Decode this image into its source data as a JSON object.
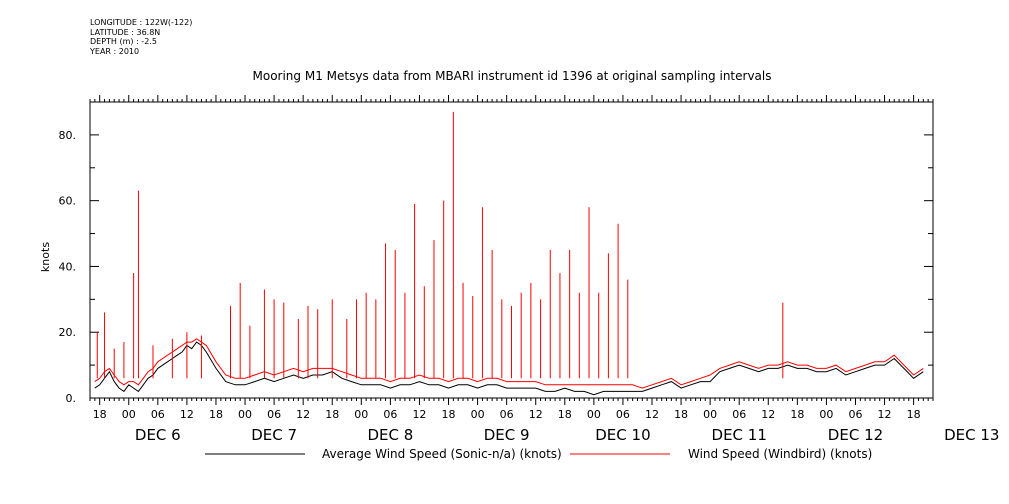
{
  "meta": {
    "longitude": "LONGITUDE : 122W(-122)",
    "latitude": "LATITUDE : 36.8N",
    "depth": "DEPTH (m) : -2.5",
    "year": "YEAR : 2010"
  },
  "chart_data": {
    "type": "line",
    "title": "Mooring M1 Metsys data from MBARI instrument id 1396 at original sampling intervals",
    "xlabel": "",
    "ylabel": "knots",
    "ylim": [
      0,
      90
    ],
    "yticks": [
      "0.",
      "20.",
      "40.",
      "60.",
      "80."
    ],
    "ytick_values": [
      0,
      20,
      40,
      60,
      80
    ],
    "xlim_hours": [
      -8,
      166
    ],
    "x_axis_start": "DEC 5 16:00",
    "hour_tick_labels": [
      "18",
      "00",
      "06",
      "12",
      "18",
      "00",
      "06",
      "12",
      "18",
      "00",
      "06",
      "12",
      "18",
      "00",
      "06",
      "12",
      "18",
      "00",
      "06",
      "12",
      "18",
      "00",
      "06",
      "12",
      "18",
      "00",
      "06",
      "12",
      "18"
    ],
    "day_labels": [
      "DEC  6",
      "DEC  7",
      "DEC  8",
      "DEC  9",
      "DEC 10",
      "DEC 11",
      "DEC 12",
      "DEC 13"
    ],
    "grid": false,
    "legend_position": "bottom",
    "series": [
      {
        "name": "Average Wind Speed (Sonic-n/a) (knots)",
        "color": "#000000",
        "x": [
          -7,
          -6,
          -5,
          -4,
          -3,
          -2,
          -1,
          0,
          1,
          2,
          3,
          4,
          5,
          6,
          7,
          8,
          9,
          10,
          11,
          12,
          13,
          14,
          15,
          16,
          18,
          20,
          22,
          24,
          26,
          28,
          30,
          32,
          34,
          36,
          38,
          40,
          42,
          44,
          46,
          48,
          50,
          52,
          54,
          56,
          58,
          60,
          62,
          64,
          66,
          68,
          70,
          72,
          74,
          76,
          78,
          80,
          82,
          84,
          86,
          88,
          90,
          92,
          94,
          96,
          98,
          100,
          102,
          104,
          106,
          108,
          110,
          112,
          114,
          116,
          118,
          120,
          122,
          124,
          126,
          128,
          130,
          132,
          134,
          136,
          138,
          140,
          142,
          144,
          146,
          148,
          150,
          152,
          154,
          156,
          158,
          160,
          162,
          164
        ],
        "y": [
          3,
          4,
          6,
          8,
          5,
          3,
          2,
          4,
          3,
          2,
          4,
          6,
          7,
          9,
          10,
          11,
          12,
          13,
          14,
          16,
          15,
          17,
          16,
          14,
          9,
          5,
          4,
          4,
          5,
          6,
          5,
          6,
          7,
          6,
          7,
          7,
          8,
          6,
          5,
          4,
          4,
          4,
          3,
          4,
          4,
          5,
          4,
          4,
          3,
          4,
          4,
          3,
          4,
          4,
          3,
          3,
          3,
          3,
          2,
          2,
          3,
          2,
          2,
          1,
          2,
          2,
          2,
          2,
          2,
          3,
          4,
          5,
          3,
          4,
          5,
          5,
          8,
          9,
          10,
          9,
          8,
          9,
          9,
          10,
          9,
          9,
          8,
          8,
          9,
          7,
          8,
          9,
          10,
          10,
          12,
          9,
          6,
          8
        ]
      },
      {
        "name": "Wind Speed (Windbird) (knots)",
        "color": "#ff0000",
        "x": [
          -7,
          -6,
          -5,
          -4,
          -3,
          -2,
          -1,
          0,
          1,
          2,
          3,
          4,
          5,
          6,
          7,
          8,
          9,
          10,
          11,
          12,
          13,
          14,
          15,
          16,
          18,
          20,
          22,
          24,
          26,
          28,
          30,
          32,
          34,
          36,
          38,
          40,
          42,
          44,
          46,
          48,
          50,
          52,
          54,
          56,
          58,
          60,
          62,
          64,
          66,
          68,
          70,
          72,
          74,
          76,
          78,
          80,
          82,
          84,
          86,
          88,
          90,
          92,
          94,
          96,
          98,
          100,
          102,
          104,
          106,
          108,
          110,
          112,
          114,
          116,
          118,
          120,
          122,
          124,
          126,
          128,
          130,
          132,
          134,
          136,
          138,
          140,
          142,
          144,
          146,
          148,
          150,
          152,
          154,
          156,
          158,
          160,
          162,
          164
        ],
        "y": [
          5,
          6,
          8,
          9,
          7,
          5,
          4,
          5,
          5,
          4,
          6,
          8,
          9,
          11,
          12,
          13,
          14,
          15,
          16,
          17,
          17,
          18,
          17,
          16,
          11,
          7,
          6,
          6,
          7,
          8,
          7,
          8,
          9,
          8,
          9,
          9,
          9,
          8,
          7,
          6,
          6,
          6,
          5,
          6,
          6,
          7,
          6,
          6,
          5,
          6,
          6,
          5,
          6,
          6,
          5,
          5,
          5,
          5,
          4,
          4,
          4,
          4,
          4,
          4,
          4,
          4,
          4,
          4,
          3,
          4,
          5,
          6,
          4,
          5,
          6,
          7,
          9,
          10,
          11,
          10,
          9,
          10,
          10,
          11,
          10,
          10,
          9,
          9,
          10,
          8,
          9,
          10,
          11,
          11,
          13,
          10,
          7,
          9
        ]
      },
      {
        "name": "",
        "color": "#ff0000",
        "spikes_hours": [
          -6.5,
          -5,
          -3,
          -1,
          1,
          2,
          5,
          9,
          12,
          15,
          21,
          23,
          25,
          28,
          30,
          32,
          35,
          37,
          39,
          42,
          45,
          47,
          49,
          51,
          53,
          55,
          57,
          59,
          61,
          63,
          65,
          67,
          69,
          71,
          73,
          75,
          77,
          79,
          81,
          83,
          85,
          87,
          89,
          91,
          93,
          95,
          97,
          99,
          101,
          103,
          135
        ],
        "spikes_values": [
          20,
          26,
          15,
          17,
          38,
          63,
          16,
          18,
          20,
          19,
          28,
          35,
          22,
          33,
          30,
          29,
          24,
          28,
          27,
          30,
          24,
          30,
          32,
          30,
          47,
          45,
          32,
          59,
          34,
          48,
          60,
          87,
          35,
          31,
          58,
          45,
          30,
          28,
          32,
          35,
          30,
          45,
          38,
          45,
          32,
          58,
          32,
          44,
          53,
          36,
          29
        ]
      }
    ]
  }
}
